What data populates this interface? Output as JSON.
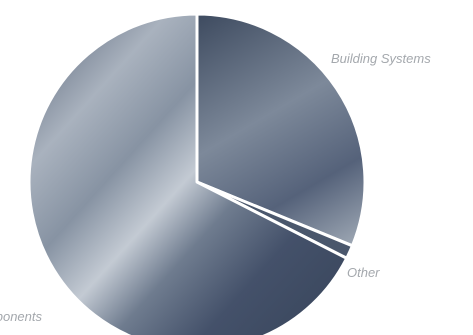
{
  "chart_data": {
    "type": "pie",
    "start_angle_deg": 0,
    "direction": "clockwise",
    "legend": "none",
    "slices": [
      {
        "label": "Building Systems",
        "value": 31.2
      },
      {
        "label": "Other",
        "value": 1.3
      },
      {
        "label": "Components",
        "value": 67.5
      }
    ]
  },
  "colors": {
    "slice_dark": "#3e4b60",
    "slice_mid": "#7f8b9b",
    "slice_light": "#b9c1cb",
    "separator": "#ffffff",
    "label": "#a4a8ad"
  }
}
